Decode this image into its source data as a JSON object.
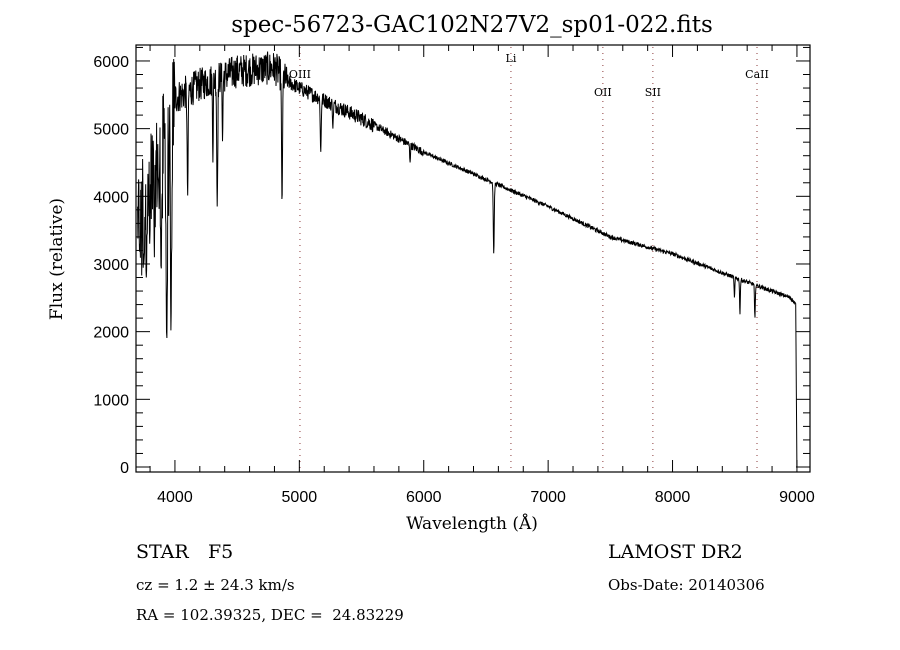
{
  "chart_data": {
    "type": "line",
    "title": "spec-56723-GAC102N27V2_sp01-022.fits",
    "xlabel": "Wavelength (Å)",
    "ylabel": "Flux (relative)",
    "xlim": [
      3687,
      9105
    ],
    "ylim": [
      -74,
      6236
    ],
    "x_ticks": [
      4000,
      5000,
      6000,
      7000,
      8000,
      9000
    ],
    "y_ticks": [
      0,
      1000,
      2000,
      3000,
      4000,
      5000,
      6000
    ],
    "x_minor_step": 200,
    "y_minor_step": 200,
    "grid": false,
    "series": [
      {
        "name": "spectrum",
        "continuum": [
          [
            3700,
            3600
          ],
          [
            3800,
            4100
          ],
          [
            3900,
            4700
          ],
          [
            4000,
            5450
          ],
          [
            4200,
            5650
          ],
          [
            4500,
            5850
          ],
          [
            4800,
            5900
          ],
          [
            4900,
            5700
          ],
          [
            5000,
            5600
          ],
          [
            5500,
            5150
          ],
          [
            6000,
            4650
          ],
          [
            6500,
            4250
          ],
          [
            7000,
            3850
          ],
          [
            7500,
            3400
          ],
          [
            8000,
            3150
          ],
          [
            8500,
            2800
          ],
          [
            8950,
            2500
          ],
          [
            8990,
            2400
          ],
          [
            9000,
            0
          ]
        ],
        "absorption_lines": [
          [
            3750,
            3000,
            3
          ],
          [
            3770,
            2800,
            3
          ],
          [
            3798,
            3300,
            3
          ],
          [
            3835,
            3100,
            3
          ],
          [
            3889,
            2900,
            4
          ],
          [
            3934,
            1850,
            5
          ],
          [
            3968,
            2000,
            5
          ],
          [
            4102,
            4000,
            4
          ],
          [
            4305,
            4500,
            3
          ],
          [
            4340,
            3850,
            4
          ],
          [
            4383,
            4800,
            3
          ],
          [
            4861,
            3900,
            4
          ],
          [
            5172,
            4650,
            4
          ],
          [
            5270,
            5000,
            3
          ],
          [
            5890,
            4500,
            3
          ],
          [
            6563,
            3150,
            4
          ],
          [
            6870,
            3950,
            3
          ],
          [
            8498,
            2500,
            3
          ],
          [
            8542,
            2250,
            3
          ],
          [
            8662,
            2200,
            3
          ]
        ]
      }
    ],
    "line_markers": [
      {
        "label": "OIII",
        "wavelength": 5005
      },
      {
        "label": "Li",
        "wavelength": 6701
      },
      {
        "label": "OII",
        "wavelength": 7440
      },
      {
        "label": "SII",
        "wavelength": 7842
      },
      {
        "label": "CaII",
        "wavelength": 8679
      }
    ]
  },
  "info": {
    "object_class": "STAR",
    "subclass": "F5",
    "survey": "LAMOST DR2",
    "cz": "cz = 1.2 ± 24.3 km/s",
    "obs_date": "Obs-Date: 20140306",
    "coords": "RA = 102.39325, DEC =  24.83229"
  },
  "colors": {
    "axes": "#000000",
    "marker": "#8b3a3a"
  }
}
